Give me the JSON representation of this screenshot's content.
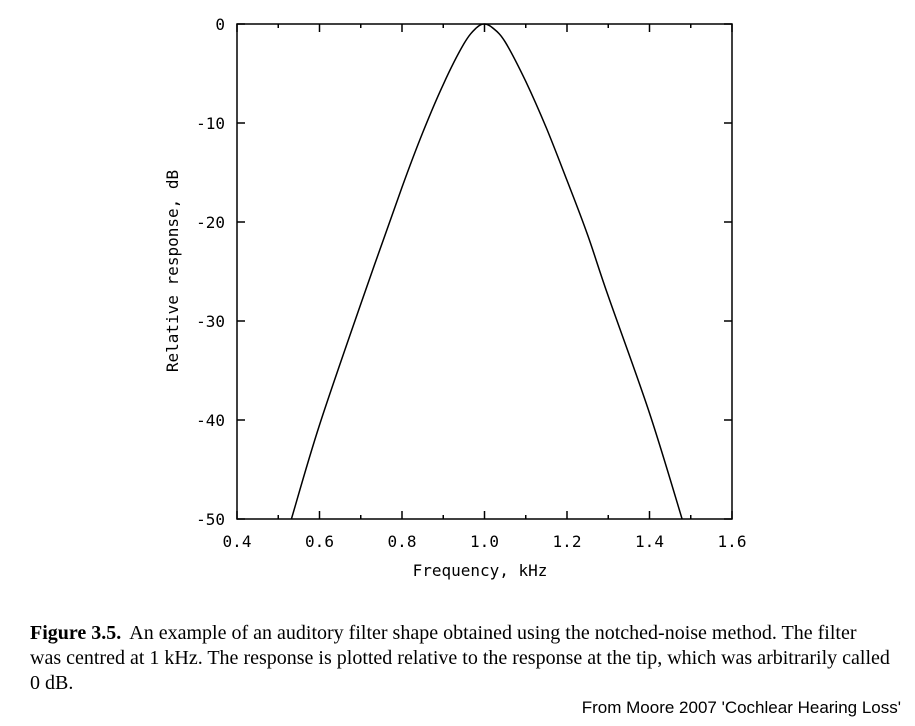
{
  "chart_data": {
    "type": "line",
    "xlabel": "Frequency, kHz",
    "ylabel": "Relative response, dB",
    "xlim": [
      0.4,
      1.6
    ],
    "ylim": [
      -50,
      0
    ],
    "x_ticks": [
      "0.4",
      "0.6",
      "0.8",
      "1.0",
      "1.2",
      "1.4",
      "1.6"
    ],
    "y_ticks": [
      "0",
      "-10",
      "-20",
      "-30",
      "-40",
      "-50"
    ],
    "grid": false,
    "series": [
      {
        "x": [
          0.532,
          0.6,
          0.7,
          0.8,
          0.85,
          0.9,
          0.95,
          0.98,
          1.0,
          1.02,
          1.05,
          1.1,
          1.15,
          1.2,
          1.25,
          1.3,
          1.4,
          1.479
        ],
        "y": [
          -50,
          -40.5,
          -28.3,
          -16.5,
          -11.0,
          -6.1,
          -2.0,
          -0.4,
          0,
          -0.4,
          -1.8,
          -5.8,
          -10.5,
          -15.8,
          -21.3,
          -27.5,
          -39.3,
          -50
        ]
      }
    ]
  },
  "caption": {
    "label": "Figure 3.5.",
    "text": "An example of an auditory filter shape obtained using the notched-noise method. The filter was centred at 1 kHz. The response is plotted relative to the response at the tip, which was arbitrarily called 0 dB."
  },
  "source": "From Moore 2007 'Cochlear Hearing Loss'",
  "colors": {
    "line": "#000000",
    "background": "#ffffff"
  }
}
